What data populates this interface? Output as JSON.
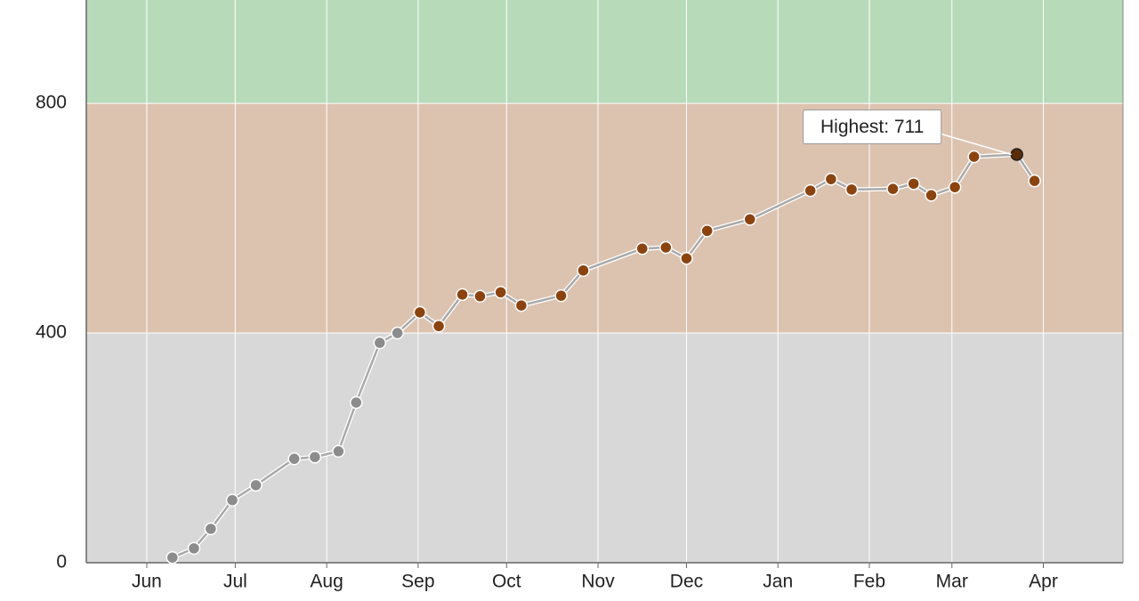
{
  "chart_data": {
    "type": "line",
    "x": [
      8.7,
      16,
      21.7,
      29,
      37,
      50,
      57,
      65,
      71,
      79,
      85,
      92.6,
      99,
      107,
      113,
      120,
      127,
      140.5,
      148,
      168,
      176,
      183,
      190,
      204.5,
      225,
      232,
      239,
      253,
      260,
      266,
      274,
      280.5,
      295,
      301
    ],
    "series": [
      {
        "color": "#a9a9a9",
        "values": [
          9,
          25,
          59,
          109,
          135,
          181,
          184,
          194,
          279,
          383,
          400,
          436,
          412,
          467,
          464,
          471,
          448,
          465,
          509,
          547,
          549,
          530,
          578,
          598,
          648,
          668,
          650,
          651,
          660,
          640,
          654,
          707,
          711,
          665
        ]
      }
    ],
    "xlim": [
      -20.5,
      331
    ],
    "xticks": [
      {
        "value": 0,
        "label": "Jun"
      },
      {
        "value": 30,
        "label": "Jul"
      },
      {
        "value": 61,
        "label": "Aug"
      },
      {
        "value": 92,
        "label": "Sep"
      },
      {
        "value": 122,
        "label": "Oct"
      },
      {
        "value": 153,
        "label": "Nov"
      },
      {
        "value": 183,
        "label": "Dec"
      },
      {
        "value": 214,
        "label": "Jan"
      },
      {
        "value": 245,
        "label": "Feb"
      },
      {
        "value": 273,
        "label": "Mar"
      },
      {
        "value": 304,
        "label": "Apr"
      }
    ],
    "ylim": [
      0,
      980
    ],
    "yticks": [
      0,
      400,
      800
    ],
    "grid": true,
    "bands": [
      {
        "from": 0,
        "to": 400,
        "color": "#d8d8d8",
        "marker_color": "#8c8c8c"
      },
      {
        "from": 400,
        "to": 800,
        "color": "#dcc3b0",
        "marker_color": "#8b4410"
      },
      {
        "from": 800,
        "to": 980,
        "color": "#b7dbb9",
        "marker_color": "#8b4410"
      }
    ],
    "annotation": {
      "text": "Highest: 711",
      "x": 295,
      "y": 711,
      "color": "#5a2c08"
    }
  }
}
